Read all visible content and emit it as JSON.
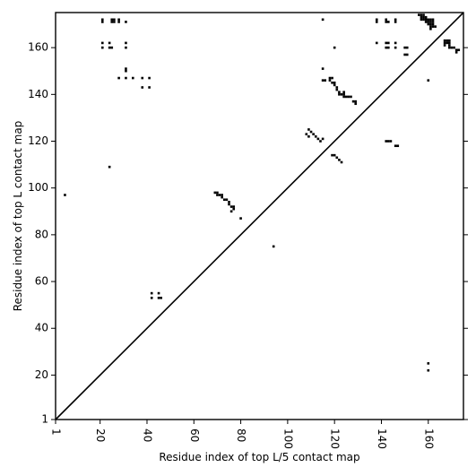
{
  "chart_data": {
    "type": "scatter",
    "title": "",
    "xlabel": "Residue index of top L/5 contact map",
    "ylabel": "Residue index of top L contact map",
    "xlim": [
      1,
      175
    ],
    "ylim": [
      1,
      175
    ],
    "xticks": [
      1,
      20,
      40,
      60,
      80,
      100,
      120,
      140,
      160
    ],
    "yticks": [
      1,
      20,
      40,
      60,
      80,
      100,
      120,
      140,
      160
    ],
    "diagonal": true,
    "grid": false,
    "series": [
      {
        "values": [
          [
            21,
            172
          ],
          [
            21,
            171
          ],
          [
            25,
            172
          ],
          [
            25,
            171
          ],
          [
            26,
            172
          ],
          [
            26,
            171
          ],
          [
            28,
            172
          ],
          [
            28,
            171
          ],
          [
            31,
            171
          ],
          [
            21,
            162
          ],
          [
            21,
            160
          ],
          [
            24,
            162
          ],
          [
            24,
            160
          ],
          [
            25,
            160
          ],
          [
            31,
            162
          ],
          [
            31,
            160
          ],
          [
            31,
            151
          ],
          [
            31,
            150
          ],
          [
            28,
            147
          ],
          [
            31,
            147
          ],
          [
            34,
            147
          ],
          [
            38,
            147
          ],
          [
            41,
            147
          ],
          [
            38,
            143
          ],
          [
            41,
            143
          ],
          [
            24,
            109
          ],
          [
            5,
            97
          ],
          [
            42,
            55
          ],
          [
            42,
            53
          ],
          [
            45,
            55
          ],
          [
            45,
            53
          ],
          [
            46,
            53
          ],
          [
            69,
            98
          ],
          [
            70,
            98
          ],
          [
            70,
            97
          ],
          [
            71,
            97
          ],
          [
            72,
            97
          ],
          [
            72,
            96
          ],
          [
            73,
            95
          ],
          [
            74,
            95
          ],
          [
            75,
            94
          ],
          [
            75,
            93
          ],
          [
            76,
            92
          ],
          [
            77,
            92
          ],
          [
            77,
            91
          ],
          [
            76,
            90
          ],
          [
            80,
            87
          ],
          [
            94,
            75
          ],
          [
            109,
            125
          ],
          [
            108,
            123
          ],
          [
            109,
            122
          ],
          [
            110,
            124
          ],
          [
            111,
            123
          ],
          [
            112,
            122
          ],
          [
            113,
            121
          ],
          [
            114,
            120
          ],
          [
            115,
            121
          ],
          [
            115,
            151
          ],
          [
            115,
            146
          ],
          [
            116,
            146
          ],
          [
            115,
            172
          ],
          [
            118,
            147
          ],
          [
            119,
            147
          ],
          [
            118,
            146
          ],
          [
            119,
            145
          ],
          [
            120,
            145
          ],
          [
            120,
            144
          ],
          [
            121,
            143
          ],
          [
            121,
            142
          ],
          [
            122,
            141
          ],
          [
            122,
            140
          ],
          [
            123,
            140
          ],
          [
            124,
            141
          ],
          [
            124,
            140
          ],
          [
            124,
            139
          ],
          [
            125,
            139
          ],
          [
            126,
            139
          ],
          [
            127,
            139
          ],
          [
            128,
            137
          ],
          [
            129,
            137
          ],
          [
            129,
            136
          ],
          [
            120,
            160
          ],
          [
            119,
            114
          ],
          [
            120,
            114
          ],
          [
            121,
            113
          ],
          [
            122,
            112
          ],
          [
            123,
            111
          ],
          [
            138,
            172
          ],
          [
            138,
            171
          ],
          [
            138,
            162
          ],
          [
            142,
            172
          ],
          [
            142,
            171
          ],
          [
            143,
            171
          ],
          [
            142,
            162
          ],
          [
            143,
            162
          ],
          [
            142,
            160
          ],
          [
            143,
            160
          ],
          [
            146,
            172
          ],
          [
            146,
            171
          ],
          [
            146,
            162
          ],
          [
            146,
            160
          ],
          [
            150,
            160
          ],
          [
            151,
            160
          ],
          [
            150,
            157
          ],
          [
            151,
            157
          ],
          [
            142,
            120
          ],
          [
            143,
            120
          ],
          [
            144,
            120
          ],
          [
            146,
            118
          ],
          [
            147,
            118
          ],
          [
            156,
            174
          ],
          [
            157,
            174
          ],
          [
            158,
            174
          ],
          [
            157,
            173
          ],
          [
            158,
            173
          ],
          [
            159,
            173
          ],
          [
            157,
            172
          ],
          [
            158,
            172
          ],
          [
            159,
            172
          ],
          [
            160,
            172
          ],
          [
            161,
            172
          ],
          [
            162,
            172
          ],
          [
            159,
            171
          ],
          [
            160,
            171
          ],
          [
            161,
            171
          ],
          [
            162,
            171
          ],
          [
            160,
            170
          ],
          [
            161,
            170
          ],
          [
            162,
            170
          ],
          [
            161,
            169
          ],
          [
            162,
            169
          ],
          [
            163,
            169
          ],
          [
            161,
            168
          ],
          [
            160,
            146
          ],
          [
            167,
            163
          ],
          [
            168,
            163
          ],
          [
            169,
            163
          ],
          [
            167,
            162
          ],
          [
            168,
            162
          ],
          [
            169,
            162
          ],
          [
            167,
            161
          ],
          [
            169,
            161
          ],
          [
            169,
            160
          ],
          [
            170,
            160
          ],
          [
            171,
            160
          ],
          [
            172,
            159
          ],
          [
            172,
            158
          ],
          [
            173,
            159
          ],
          [
            160,
            25
          ],
          [
            160,
            22
          ]
        ]
      }
    ]
  }
}
